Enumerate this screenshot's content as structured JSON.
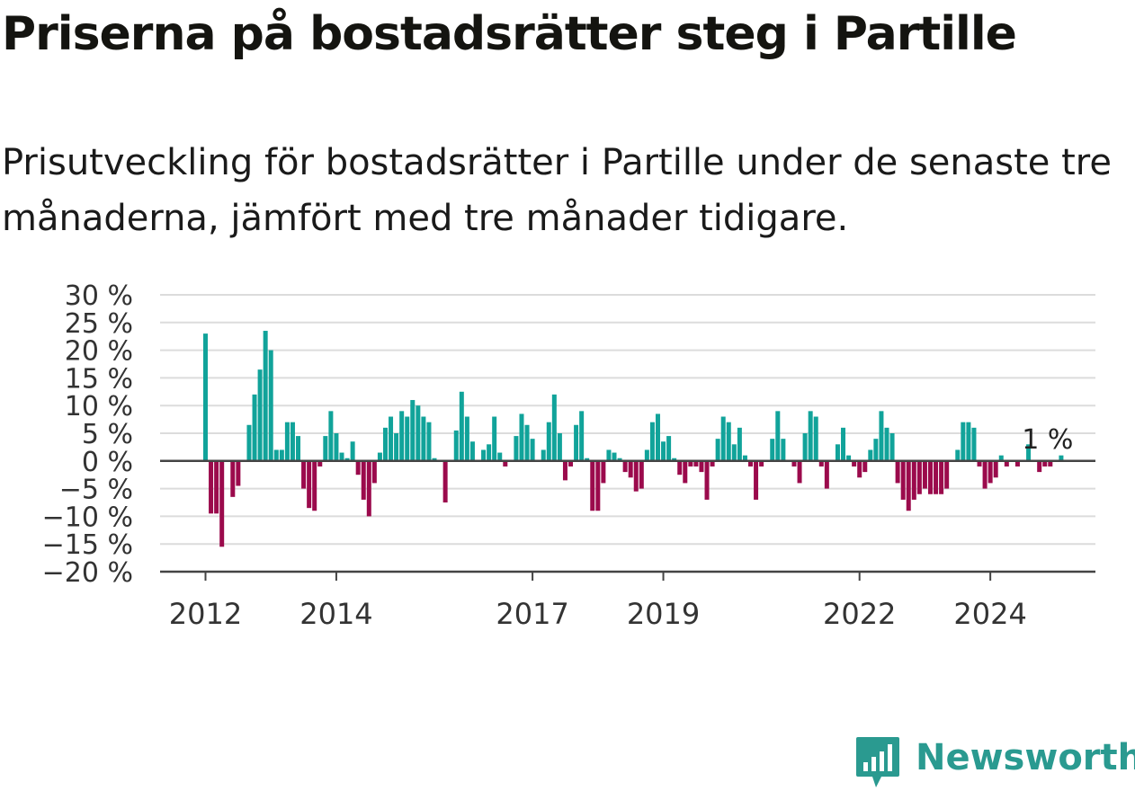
{
  "title": "Priserna på bostadsrätter steg i Partille",
  "subtitle": "Prisutveckling för bostadsrätter i Partille under de senaste tre månaderna, jämfört med tre månader tidigare.",
  "brand": {
    "name": "Newsworthy",
    "color": "#2a9a90"
  },
  "colors": {
    "positive": "#11a39a",
    "negative": "#9b0a4c",
    "grid": "#dcdcdc",
    "axis": "#444444"
  },
  "chart_data": {
    "type": "bar",
    "ylim": [
      -20,
      30
    ],
    "yticks": [
      30,
      25,
      20,
      15,
      10,
      5,
      0,
      -5,
      -10,
      -15,
      -20
    ],
    "ytick_labels": [
      "30 %",
      "25 %",
      "20 %",
      "15 %",
      "10 %",
      "5 %",
      "0 %",
      "−5 %",
      "−10 %",
      "−15 %",
      "−20 %"
    ],
    "xticks": [
      {
        "label": "2012",
        "index": 0
      },
      {
        "label": "2014",
        "index": 24
      },
      {
        "label": "2017",
        "index": 60
      },
      {
        "label": "2019",
        "index": 84
      },
      {
        "label": "2022",
        "index": 120
      },
      {
        "label": "2024",
        "index": 144
      }
    ],
    "start": "2012-01",
    "grid": true,
    "annotation": {
      "text": "1 %",
      "index": 155
    },
    "values": [
      23,
      -9.5,
      -9.5,
      -15.5,
      0,
      -6.5,
      -4.5,
      0,
      6.5,
      12,
      16.5,
      23.5,
      20,
      2,
      2,
      7,
      7,
      4.5,
      -5,
      -8.5,
      -9,
      -1,
      4.5,
      9,
      5,
      1.5,
      0.5,
      3.5,
      -2.5,
      -7,
      -10,
      -4,
      1.5,
      6,
      8,
      5,
      9,
      8,
      11,
      10,
      8,
      7,
      0.5,
      0,
      -7.5,
      0,
      5.5,
      12.5,
      8,
      3.5,
      0,
      2,
      3,
      8,
      1.5,
      -1,
      0,
      4.5,
      8.5,
      6.5,
      4,
      0,
      2,
      7,
      12,
      5,
      -3.5,
      -1,
      6.5,
      9,
      0.5,
      -9,
      -9,
      -4,
      2,
      1.5,
      0.5,
      -2,
      -3,
      -5.5,
      -5,
      2,
      7,
      8.5,
      3.5,
      4.5,
      0.5,
      -2.5,
      -4,
      -1,
      -1,
      -2,
      -7,
      -1,
      4,
      8,
      7,
      3,
      6,
      1,
      -1,
      -7,
      -1,
      0,
      4,
      9,
      4,
      0,
      -1,
      -4,
      5,
      9,
      8,
      -1,
      -5,
      0,
      3,
      6,
      1,
      -1,
      -3,
      -2,
      2,
      4,
      9,
      6,
      5,
      -4,
      -7,
      -9,
      -7,
      -6,
      -5,
      -6,
      -6,
      -6,
      -5,
      0,
      2,
      7,
      7,
      6,
      -1,
      -5,
      -4,
      -3,
      1,
      -1,
      0,
      -1,
      0,
      3,
      0,
      -2,
      -1,
      -1,
      0,
      1
    ]
  }
}
